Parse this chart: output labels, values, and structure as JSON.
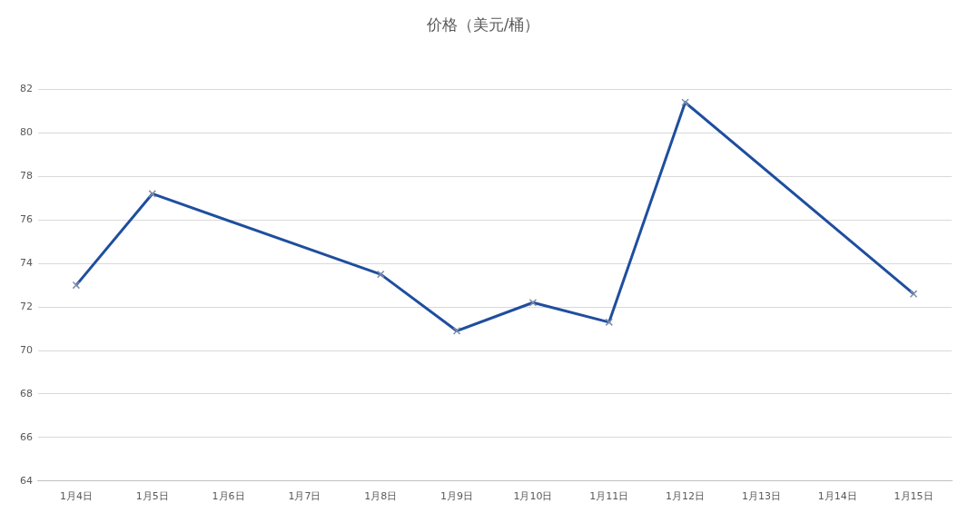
{
  "chart_data": {
    "type": "line",
    "title": "价格（美元/桶）",
    "categories": [
      "1月4日",
      "1月5日",
      "1月6日",
      "1月7日",
      "1月8日",
      "1月9日",
      "1月10日",
      "1月11日",
      "1月12日",
      "1月13日",
      "1月14日",
      "1月15日"
    ],
    "series": [
      {
        "color": "#1f4e9e",
        "values": [
          73.0,
          77.2,
          null,
          null,
          73.5,
          70.9,
          72.2,
          71.3,
          81.4,
          null,
          null,
          72.6
        ]
      }
    ],
    "ylim": [
      64,
      82
    ],
    "yticks": [
      64,
      66,
      68,
      70,
      72,
      74,
      76,
      78,
      80,
      82
    ],
    "grid": "y",
    "legend": false,
    "marker": "cross",
    "line_style": "solid"
  }
}
